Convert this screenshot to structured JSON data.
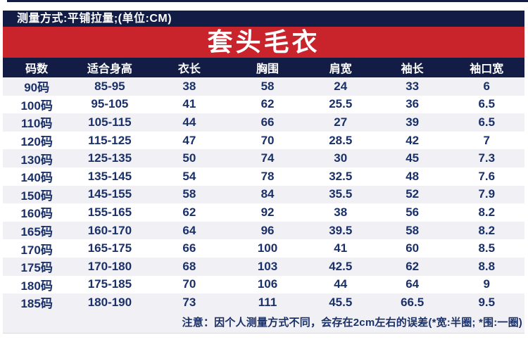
{
  "colors": {
    "navy": "#121c45",
    "red": "#c9232b",
    "row_alt": "#f1f1f5",
    "row_white": "#ffffff",
    "text_navy": "#1a3068",
    "text_white": "#ffffff"
  },
  "top_bar": {
    "text": "测量方式:平铺拉量;(单位:CM)"
  },
  "banner": {
    "title": "套头毛衣"
  },
  "table": {
    "headers": [
      "码数",
      "适合身高",
      "衣长",
      "胸围",
      "肩宽",
      "袖长",
      "袖口宽"
    ],
    "rows": [
      [
        "90码",
        "85-95",
        "38",
        "58",
        "24",
        "33",
        "6"
      ],
      [
        "100码",
        "95-105",
        "41",
        "62",
        "25.5",
        "36",
        "6.5"
      ],
      [
        "110码",
        "105-115",
        "44",
        "66",
        "27",
        "39",
        "6.5"
      ],
      [
        "120码",
        "115-125",
        "47",
        "70",
        "28.5",
        "42",
        "7"
      ],
      [
        "130码",
        "125-135",
        "50",
        "74",
        "30",
        "45",
        "7.3"
      ],
      [
        "140码",
        "135-145",
        "54",
        "78",
        "32.5",
        "48",
        "7.6"
      ],
      [
        "150码",
        "145-155",
        "58",
        "84",
        "35.5",
        "52",
        "7.9"
      ],
      [
        "160码",
        "155-165",
        "62",
        "92",
        "38",
        "56",
        "8.2"
      ],
      [
        "165码",
        "160-170",
        "64",
        "96",
        "39.5",
        "58",
        "8.2"
      ],
      [
        "170码",
        "165-175",
        "66",
        "100",
        "41",
        "60",
        "8.5"
      ],
      [
        "175码",
        "170-180",
        "68",
        "103",
        "42.5",
        "62",
        "8.8"
      ],
      [
        "180码",
        "175-185",
        "70",
        "106",
        "44",
        "64",
        "9"
      ],
      [
        "185码",
        "180-190",
        "73",
        "111",
        "45.5",
        "66.5",
        "9.5"
      ]
    ]
  },
  "note": {
    "text": "注意：因个人测量方式不同，会存在2cm左右的误差(*宽:半圈; *围:一圈)"
  },
  "chart_data": {
    "type": "table",
    "title": "套头毛衣",
    "subtitle": "测量方式:平铺拉量;(单位:CM)",
    "unit": "CM",
    "columns": [
      "码数",
      "适合身高",
      "衣长",
      "胸围",
      "肩宽",
      "袖长",
      "袖口宽"
    ],
    "rows": [
      [
        "90码",
        "85-95",
        38,
        58,
        24,
        33,
        6
      ],
      [
        "100码",
        "95-105",
        41,
        62,
        25.5,
        36,
        6.5
      ],
      [
        "110码",
        "105-115",
        44,
        66,
        27,
        39,
        6.5
      ],
      [
        "120码",
        "115-125",
        47,
        70,
        28.5,
        42,
        7
      ],
      [
        "130码",
        "125-135",
        50,
        74,
        30,
        45,
        7.3
      ],
      [
        "140码",
        "135-145",
        54,
        78,
        32.5,
        48,
        7.6
      ],
      [
        "150码",
        "145-155",
        58,
        84,
        35.5,
        52,
        7.9
      ],
      [
        "160码",
        "155-165",
        62,
        92,
        38,
        56,
        8.2
      ],
      [
        "165码",
        "160-170",
        64,
        96,
        39.5,
        58,
        8.2
      ],
      [
        "170码",
        "165-175",
        66,
        100,
        41,
        60,
        8.5
      ],
      [
        "175码",
        "170-180",
        68,
        103,
        42.5,
        62,
        8.8
      ],
      [
        "180码",
        "175-185",
        70,
        106,
        44,
        64,
        9
      ],
      [
        "185码",
        "180-190",
        73,
        111,
        45.5,
        66.5,
        9.5
      ]
    ],
    "footnote": "注意：因个人测量方式不同，会存在2cm左右的误差(*宽:半圈; *围:一圈)"
  }
}
